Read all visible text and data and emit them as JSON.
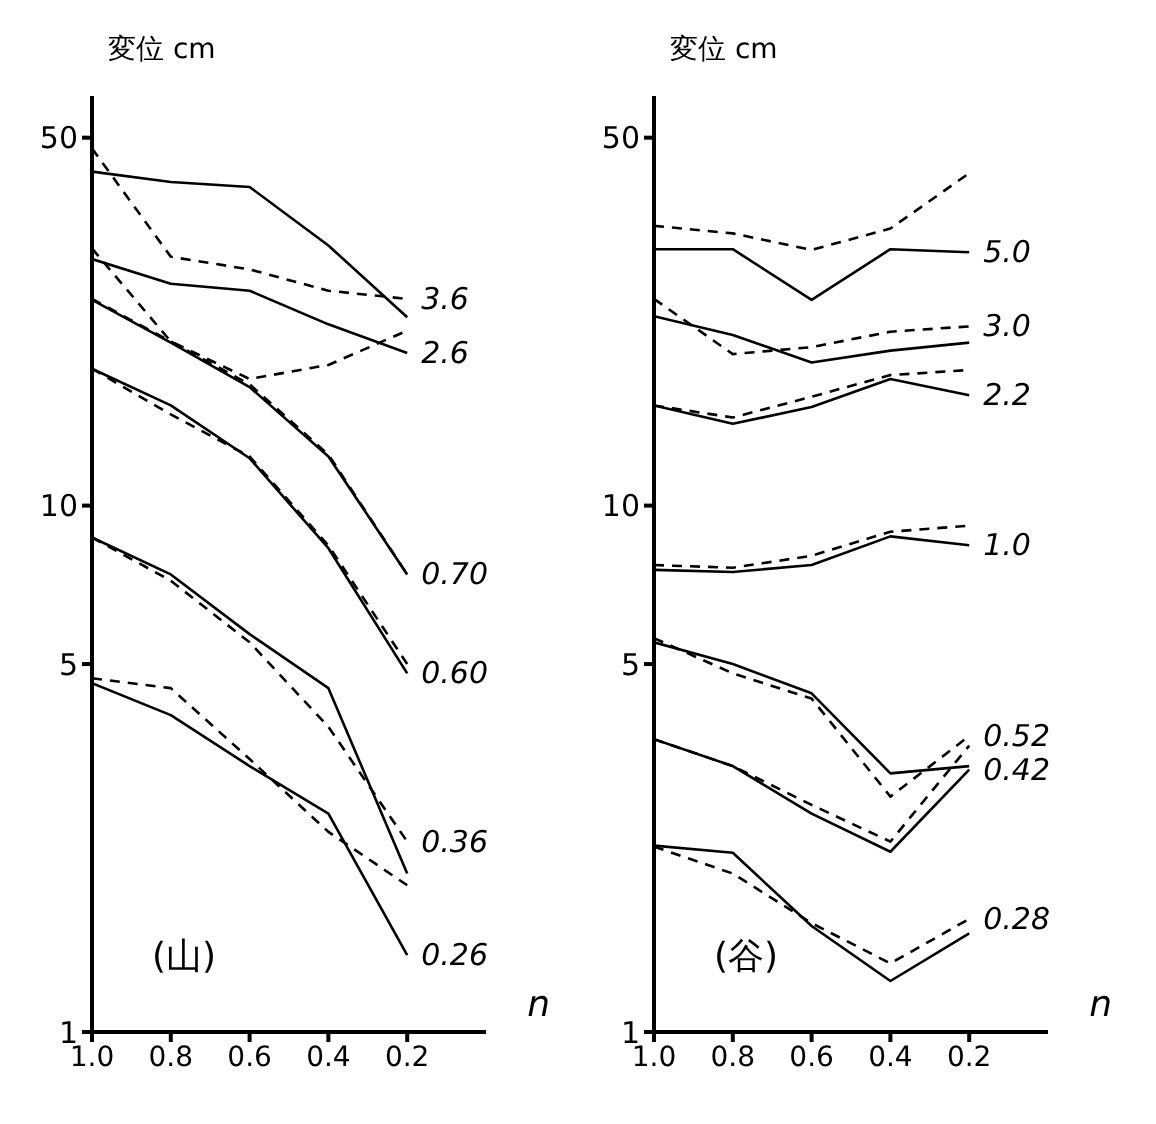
{
  "chart_data": [
    {
      "type": "line",
      "ylabel": "変位 cm",
      "xlabel": "n",
      "annotations": [
        "(山)"
      ],
      "x": [
        1.0,
        0.8,
        0.6,
        0.4,
        0.2
      ],
      "xlim": [
        1.0,
        0.0
      ],
      "xticks": [
        {
          "value": 1.0,
          "label": "1.0"
        },
        {
          "value": 0.8,
          "label": "0.8"
        },
        {
          "value": 0.6,
          "label": "0.6"
        },
        {
          "value": 0.4,
          "label": "0.4"
        },
        {
          "value": 0.2,
          "label": "0.2"
        }
      ],
      "ylim": [
        1,
        60
      ],
      "yticks": [
        1,
        5,
        10,
        50
      ],
      "log": "y",
      "marker": "none",
      "series": [
        {
          "color": "#000000",
          "line_style": "solid",
          "values": [
            43.1,
            41.2,
            40.3,
            31.2,
            22.8
          ]
        },
        {
          "name": "3.6",
          "color": "#000000",
          "line_style": "dashed",
          "values": [
            47.7,
            29.7,
            28.1,
            25.6,
            24.7
          ]
        },
        {
          "name": "2.6",
          "color": "#000000",
          "line_style": "solid",
          "values": [
            29.4,
            26.4,
            25.6,
            22.1,
            19.5
          ]
        },
        {
          "color": "#000000",
          "line_style": "dashed",
          "values": [
            30.8,
            20.5,
            17.4,
            18.5,
            21.5
          ]
        },
        {
          "name": "0.70",
          "color": "#000000",
          "line_style": "solid",
          "values": [
            24.6,
            20.4,
            16.8,
            12.4,
            7.4
          ]
        },
        {
          "color": "#000000",
          "line_style": "dashed",
          "values": [
            24.7,
            20.5,
            17.0,
            12.5,
            7.4
          ]
        },
        {
          "name": "0.60",
          "color": "#000000",
          "line_style": "solid",
          "values": [
            18.2,
            15.5,
            12.3,
            8.3,
            4.8
          ]
        },
        {
          "color": "#000000",
          "line_style": "dashed",
          "values": [
            18.2,
            14.9,
            12.4,
            8.4,
            5.0
          ]
        },
        {
          "color": "#000000",
          "line_style": "solid",
          "values": [
            8.7,
            7.4,
            5.7,
            4.5,
            2.0
          ]
        },
        {
          "name": "0.36",
          "color": "#000000",
          "line_style": "dashed",
          "values": [
            8.7,
            7.2,
            5.5,
            3.8,
            2.3
          ]
        },
        {
          "name": "0.26",
          "color": "#000000",
          "line_style": "solid",
          "values": [
            4.6,
            4.0,
            3.2,
            2.6,
            1.4
          ]
        },
        {
          "color": "#000000",
          "line_style": "dashed",
          "values": [
            4.7,
            4.5,
            3.3,
            2.4,
            1.9
          ]
        }
      ]
    },
    {
      "type": "line",
      "ylabel": "変位 cm",
      "xlabel": "n",
      "annotations": [
        "(谷)"
      ],
      "x": [
        1.0,
        0.8,
        0.6,
        0.4,
        0.2
      ],
      "xlim": [
        1.0,
        0.0
      ],
      "xticks": [
        {
          "value": 1.0,
          "label": "1.0"
        },
        {
          "value": 0.8,
          "label": "0.8"
        },
        {
          "value": 0.6,
          "label": "0.6"
        },
        {
          "value": 0.4,
          "label": "0.4"
        },
        {
          "value": 0.2,
          "label": "0.2"
        }
      ],
      "ylim": [
        1,
        60
      ],
      "yticks": [
        1,
        5,
        10,
        50
      ],
      "log": "y",
      "marker": "none",
      "series": [
        {
          "name": "5.0",
          "color": "#000000",
          "line_style": "solid",
          "values": [
            30.7,
            30.7,
            24.6,
            30.7,
            30.3
          ]
        },
        {
          "color": "#000000",
          "line_style": "dashed",
          "values": [
            34.0,
            32.9,
            30.6,
            33.6,
            42.8
          ]
        },
        {
          "color": "#000000",
          "line_style": "solid",
          "values": [
            22.9,
            21.1,
            18.7,
            19.7,
            20.4
          ]
        },
        {
          "name": "3.0",
          "color": "#000000",
          "line_style": "dashed",
          "values": [
            24.7,
            19.4,
            20.0,
            21.4,
            21.9
          ]
        },
        {
          "name": "2.2",
          "color": "#000000",
          "line_style": "solid",
          "values": [
            15.5,
            14.3,
            15.4,
            17.4,
            16.2
          ]
        },
        {
          "color": "#000000",
          "line_style": "dashed",
          "values": [
            15.5,
            14.7,
            16.1,
            17.7,
            18.1
          ]
        },
        {
          "name": "1.0",
          "color": "#000000",
          "line_style": "solid",
          "values": [
            7.55,
            7.48,
            7.71,
            8.74,
            8.41
          ]
        },
        {
          "color": "#000000",
          "line_style": "dashed",
          "values": [
            7.71,
            7.62,
            8.03,
            8.92,
            9.16
          ]
        },
        {
          "color": "#000000",
          "line_style": "solid",
          "values": [
            5.5,
            5.0,
            4.4,
            3.1,
            3.2
          ]
        },
        {
          "name": "0.52",
          "color": "#000000",
          "line_style": "dashed",
          "values": [
            5.6,
            4.8,
            4.3,
            2.8,
            3.65
          ]
        },
        {
          "name": "0.42",
          "color": "#000000",
          "line_style": "solid",
          "values": [
            3.6,
            3.2,
            2.6,
            2.2,
            3.15
          ]
        },
        {
          "color": "#000000",
          "line_style": "dashed",
          "values": [
            3.6,
            3.2,
            2.7,
            2.3,
            3.5
          ]
        },
        {
          "color": "#000000",
          "line_style": "solid",
          "values": [
            2.26,
            2.19,
            1.59,
            1.25,
            1.54
          ]
        },
        {
          "name": "0.28",
          "color": "#000000",
          "line_style": "dashed",
          "values": [
            2.25,
            2.0,
            1.61,
            1.35,
            1.64
          ]
        }
      ]
    }
  ]
}
